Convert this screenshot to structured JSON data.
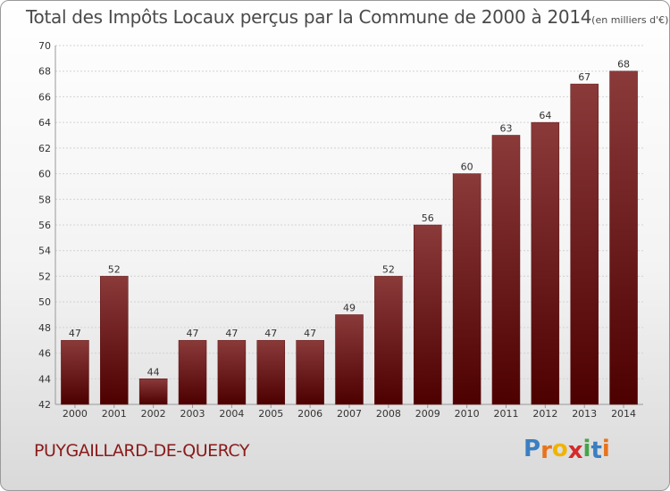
{
  "chart_data": {
    "type": "bar",
    "title": "Total des Impôts Locaux perçus par la Commune de 2000 à 2014",
    "unit": "(en milliers d'€)",
    "categories": [
      "2000",
      "2001",
      "2002",
      "2003",
      "2004",
      "2005",
      "2006",
      "2007",
      "2008",
      "2009",
      "2010",
      "2011",
      "2012",
      "2013",
      "2014"
    ],
    "values": [
      47,
      52,
      44,
      47,
      47,
      47,
      47,
      49,
      52,
      56,
      60,
      63,
      64,
      67,
      68
    ],
    "ylim": [
      42,
      70
    ],
    "yticks": [
      42,
      44,
      46,
      48,
      50,
      52,
      54,
      56,
      58,
      60,
      62,
      64,
      66,
      68,
      70
    ],
    "xlabel": "",
    "ylabel": "",
    "grid": true,
    "bar_color_top": "#8b3a3a",
    "bar_color_bottom": "#4d0000"
  },
  "footer": {
    "commune": "PUYGAILLARD-DE-QUERCY",
    "logo_letters": [
      "P",
      "r",
      "o",
      "x",
      "i",
      "t",
      "i"
    ],
    "logo_colors": [
      "#3a7fc1",
      "#e8731c",
      "#f0b400",
      "#d52b2b",
      "#47a447",
      "#3a7fc1",
      "#e8731c"
    ]
  }
}
